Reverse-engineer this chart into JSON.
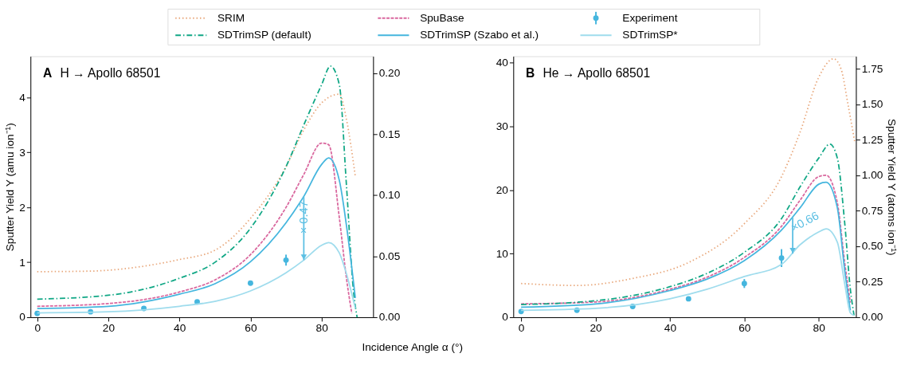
{
  "chart_data": [
    {
      "type": "line",
      "title": "H → Apollo 68501",
      "annotations": [
        "A",
        {
          "text": "× 0.47",
          "x": 75,
          "y": 1.04
        }
      ],
      "xlabel": "Incidence Angle α (°)",
      "ylabel": "Sputter Yield Y (amu ion⁻¹)",
      "xlim": [
        -1.9,
        94.5
      ],
      "xticks": [
        0,
        20,
        40,
        60,
        80
      ],
      "ylim": [
        0,
        4.75
      ],
      "yticks": [
        0,
        1,
        2,
        3,
        4
      ],
      "y2lim": [
        0,
        0.214
      ],
      "y2ticks": [
        {
          "value": 0,
          "label": "0.00"
        },
        {
          "value": 0.05,
          "label": "0.05"
        },
        {
          "value": 0.1,
          "label": "0.10"
        },
        {
          "value": 0.15,
          "label": "0.15"
        },
        {
          "value": 0.2,
          "label": "0.20"
        }
      ],
      "grid": false,
      "legend": "top",
      "marker": "none",
      "series": [
        {
          "name": "SRIM",
          "color": "#e8a679",
          "line_style": "dotted",
          "x": [
            0,
            15,
            30,
            40,
            50,
            60,
            70,
            75,
            80,
            85,
            87,
            89.5
          ],
          "values": [
            0.83,
            0.84,
            0.93,
            1.05,
            1.22,
            1.8,
            2.74,
            3.41,
            3.9,
            4.06,
            3.6,
            2.56
          ]
        },
        {
          "name": "SpuBase",
          "color": "#d9679e",
          "line_style": "dashed",
          "x": [
            0,
            20,
            40,
            50,
            60,
            70,
            75,
            80,
            82,
            85,
            87,
            88.5
          ],
          "values": [
            0.2,
            0.25,
            0.46,
            0.68,
            1.14,
            2.0,
            2.6,
            3.17,
            3.14,
            1.81,
            0.71,
            0.07
          ]
        },
        {
          "name": "Experiment",
          "type": "scatter",
          "marker": "circle",
          "color": "#45b6de",
          "x": [
            0,
            15,
            30,
            45,
            60,
            70
          ],
          "values": [
            0.07,
            0.1,
            0.16,
            0.28,
            0.62,
            1.04
          ],
          "errors": [
            null,
            null,
            null,
            null,
            null,
            0.1
          ]
        },
        {
          "name": "SDTrimSP (default)",
          "color": "#10a785",
          "line_style": "dashdot",
          "x": [
            0,
            20,
            40,
            50,
            60,
            70,
            75,
            80,
            82.5,
            85,
            87,
            89,
            90
          ],
          "values": [
            0.33,
            0.4,
            0.71,
            1.0,
            1.62,
            2.74,
            3.5,
            4.23,
            4.57,
            4.23,
            2.4,
            0.46,
            0
          ]
        },
        {
          "name": "SDTrimSP (Szabo et al.)",
          "color": "#45b6de",
          "line_style": "solid",
          "x": [
            0,
            20,
            40,
            50,
            60,
            70,
            75,
            80,
            82,
            85,
            87,
            89.5
          ],
          "values": [
            0.16,
            0.2,
            0.42,
            0.61,
            1.01,
            1.72,
            2.2,
            2.78,
            2.9,
            2.49,
            1.67,
            0.35
          ]
        },
        {
          "name": "SDTrimSP*",
          "color": "#9fdced",
          "line_style": "solid",
          "x": [
            0,
            20,
            40,
            50,
            60,
            70,
            75,
            80,
            82,
            85,
            87,
            89.5
          ],
          "values": [
            0.08,
            0.1,
            0.2,
            0.29,
            0.48,
            0.81,
            1.04,
            1.31,
            1.36,
            1.17,
            0.79,
            0.16
          ]
        }
      ]
    },
    {
      "type": "line",
      "title": "He → Apollo 68501",
      "annotations": [
        "B",
        {
          "text": "×0.66",
          "x": 73,
          "y": 10
        }
      ],
      "y2label": "Sputter Yield Y (atoms ion⁻¹)",
      "xlim": [
        -2.1,
        90
      ],
      "xticks": [
        0,
        20,
        40,
        60,
        80
      ],
      "ylim": [
        0,
        41
      ],
      "yticks": [
        0,
        10,
        20,
        30,
        40
      ],
      "y2lim": [
        0,
        1.84
      ],
      "y2ticks": [
        {
          "value": 0,
          "label": "0.00"
        },
        {
          "value": 0.25,
          "label": "0.25"
        },
        {
          "value": 0.5,
          "label": "0.50"
        },
        {
          "value": 0.75,
          "label": "0.75"
        },
        {
          "value": 1,
          "label": "1.00"
        },
        {
          "value": 1.25,
          "label": "1.25"
        },
        {
          "value": 1.5,
          "label": "1.50"
        },
        {
          "value": 1.75,
          "label": "1.75"
        }
      ],
      "grid": false,
      "marker": "none",
      "series": [
        {
          "name": "SRIM",
          "color": "#e8a679",
          "line_style": "dotted",
          "x": [
            0,
            15,
            30,
            45,
            60,
            70,
            75,
            80,
            84,
            86,
            88,
            89.7
          ],
          "values": [
            5.3,
            5.0,
            6.1,
            8.6,
            14.7,
            22.1,
            29.1,
            37.7,
            40.6,
            39,
            33,
            27.5
          ]
        },
        {
          "name": "SpuBase",
          "color": "#d9679e",
          "line_style": "dashed",
          "x": [
            0,
            20,
            40,
            50,
            60,
            70,
            75,
            80,
            82,
            85,
            87,
            88.5
          ],
          "values": [
            2.1,
            2.4,
            4.4,
            6.3,
            9.4,
            14.3,
            18.4,
            22.1,
            22.3,
            18,
            8.5,
            2.3
          ]
        },
        {
          "name": "Experiment",
          "type": "scatter",
          "marker": "circle",
          "color": "#45b6de",
          "x": [
            0,
            15,
            30,
            45,
            60,
            70
          ],
          "values": [
            0.9,
            1.1,
            1.7,
            2.9,
            5.3,
            9.3
          ],
          "errors": [
            null,
            null,
            null,
            null,
            0.7,
            1.4
          ]
        },
        {
          "name": "SDTrimSP (default)",
          "color": "#10a785",
          "line_style": "dashdot",
          "x": [
            0,
            20,
            40,
            50,
            60,
            70,
            75,
            80,
            83,
            85,
            87,
            88.5,
            89.5
          ],
          "values": [
            2.0,
            2.6,
            4.8,
            6.9,
            10.2,
            15.5,
            20.5,
            25,
            27.2,
            25,
            14.7,
            4.4,
            0.3
          ]
        },
        {
          "name": "SDTrimSP (Szabo et al.)",
          "color": "#45b6de",
          "line_style": "solid",
          "x": [
            0,
            20,
            40,
            50,
            60,
            70,
            75,
            80,
            82,
            85,
            87,
            88.5
          ],
          "values": [
            1.6,
            2.1,
            4.2,
            6.0,
            8.9,
            13.7,
            17.2,
            20.9,
            21.2,
            17.2,
            7.3,
            1.1
          ]
        },
        {
          "name": "SDTrimSP*",
          "color": "#9fdced",
          "line_style": "solid",
          "x": [
            0,
            20,
            40,
            50,
            60,
            70,
            75,
            80,
            82,
            85,
            87,
            88.5,
            89.5
          ],
          "values": [
            1.1,
            1.4,
            2.9,
            4.4,
            6.4,
            8.3,
            11.4,
            13.4,
            13.9,
            11.8,
            5.2,
            0.7,
            0.3
          ]
        }
      ]
    }
  ]
}
